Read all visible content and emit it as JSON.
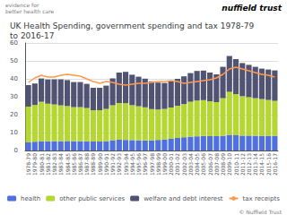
{
  "chart_data": {
    "type": "bar",
    "title": "UK Health Spending, government spending and tax 1978-79\nto 2016-17",
    "annotations": [
      "nuffield trust",
      "evidence for\nbetter health care",
      "© Nuffield Trust"
    ],
    "categories": [
      "1978-79",
      "1979-80",
      "1980-81",
      "1981-82",
      "1982-83",
      "1983-84",
      "1984-85",
      "1985-86",
      "1986-87",
      "1987-88",
      "1988-89",
      "1989-90",
      "1990-91",
      "1991-92",
      "1992-93",
      "1993-94",
      "1994-95",
      "1995-96",
      "1996-97",
      "1997-98",
      "1998-99",
      "1999-00",
      "2000-01",
      "2001-02",
      "2002-03",
      "2003-04",
      "2004-05",
      "2005-06",
      "2006-07",
      "2007-08",
      "2008-09",
      "2009-10",
      "2010-11",
      "2011-12",
      "2012-13",
      "2013-14",
      "2014-15",
      "2015-16",
      "2016-17"
    ],
    "stacked": true,
    "series": [
      {
        "name": "health",
        "type": "bar",
        "values": [
          4.5,
          4.9,
          5.2,
          5.1,
          5.2,
          5.2,
          5.3,
          5.2,
          5.2,
          5.2,
          5.0,
          5.0,
          5.2,
          5.8,
          6.0,
          5.9,
          5.8,
          5.7,
          5.6,
          5.6,
          5.9,
          6.2,
          6.5,
          7.0,
          7.4,
          7.7,
          7.9,
          8.1,
          8.0,
          8.0,
          8.2,
          8.8,
          8.5,
          8.3,
          8.3,
          8.2,
          8.2,
          8.2,
          8.2
        ]
      },
      {
        "name": "other public services",
        "type": "bar",
        "values": [
          20.0,
          20.5,
          22.0,
          21.0,
          20.5,
          20.0,
          19.5,
          19.0,
          19.0,
          18.5,
          17.5,
          17.5,
          18.0,
          19.5,
          20.5,
          20.5,
          19.5,
          19.0,
          18.5,
          17.5,
          17.0,
          17.0,
          17.5,
          18.0,
          18.5,
          19.5,
          20.0,
          20.0,
          19.5,
          19.0,
          21.0,
          24.0,
          23.0,
          22.0,
          21.5,
          21.0,
          20.5,
          20.0,
          19.5
        ]
      },
      {
        "name": "welfare and debt interest",
        "type": "bar",
        "values": [
          12.0,
          12.0,
          13.0,
          13.5,
          14.0,
          14.5,
          14.5,
          14.0,
          14.0,
          13.5,
          12.5,
          12.5,
          13.0,
          15.0,
          17.0,
          17.5,
          17.0,
          16.5,
          16.0,
          15.5,
          15.0,
          14.5,
          14.5,
          15.0,
          15.5,
          16.0,
          16.5,
          16.5,
          16.0,
          15.5,
          17.5,
          20.0,
          19.5,
          18.5,
          18.0,
          17.5,
          17.0,
          17.0,
          17.0
        ]
      },
      {
        "name": "tax receipts",
        "type": "line",
        "values": [
          38.0,
          40.5,
          42.0,
          41.0,
          41.0,
          42.0,
          42.5,
          42.0,
          41.5,
          40.0,
          38.5,
          37.5,
          38.5,
          38.0,
          37.0,
          36.5,
          37.0,
          37.5,
          37.5,
          38.0,
          38.5,
          38.5,
          39.0,
          38.5,
          37.5,
          38.0,
          38.5,
          39.0,
          39.5,
          40.5,
          42.5,
          45.5,
          46.5,
          45.5,
          44.5,
          43.5,
          42.5,
          42.0,
          41.0
        ]
      }
    ],
    "ylim": [
      0,
      60
    ],
    "yticks": [
      0,
      10,
      20,
      30,
      40,
      50,
      60
    ],
    "grid": true
  }
}
